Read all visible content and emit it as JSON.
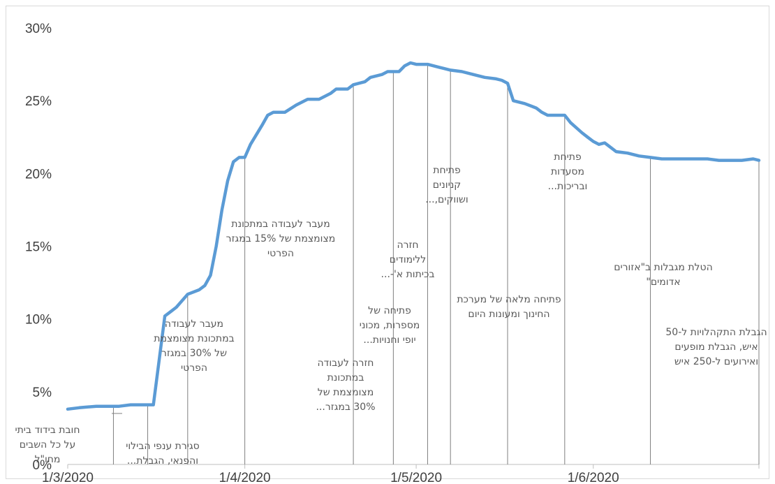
{
  "chart_data": {
    "type": "line",
    "title": "",
    "xlabel": "",
    "ylabel": "",
    "ylim": [
      0,
      30
    ],
    "y_ticks": [
      "0%",
      "5%",
      "10%",
      "15%",
      "20%",
      "25%",
      "30%"
    ],
    "x_ticks": [
      {
        "label": "1/3/2020",
        "date": "2020-03-01"
      },
      {
        "label": "1/4/2020",
        "date": "2020-04-01"
      },
      {
        "label": "1/5/2020",
        "date": "2020-05-01"
      },
      {
        "label": "1/6/2020",
        "date": "2020-06-01"
      }
    ],
    "grid": false,
    "legend": "none",
    "line_color": "#5b9bd5",
    "marker_line_color": "#7f7f7f",
    "series": [
      {
        "x": [
          "2020-03-01",
          "2020-03-03",
          "2020-03-06",
          "2020-03-08",
          "2020-03-10",
          "2020-03-12",
          "2020-03-14",
          "2020-03-16",
          "2020-03-18",
          "2020-03-19",
          "2020-03-20",
          "2020-03-22",
          "2020-03-24",
          "2020-03-25",
          "2020-03-26",
          "2020-03-27",
          "2020-03-28",
          "2020-03-29",
          "2020-03-30",
          "2020-03-31",
          "2020-04-01",
          "2020-04-02",
          "2020-04-04",
          "2020-04-05",
          "2020-04-06",
          "2020-04-08",
          "2020-04-10",
          "2020-04-12",
          "2020-04-13",
          "2020-04-14",
          "2020-04-16",
          "2020-04-17",
          "2020-04-19",
          "2020-04-20",
          "2020-04-22",
          "2020-04-23",
          "2020-04-25",
          "2020-04-26",
          "2020-04-28",
          "2020-04-29",
          "2020-04-30",
          "2020-05-01",
          "2020-05-03",
          "2020-05-05",
          "2020-05-07",
          "2020-05-09",
          "2020-05-11",
          "2020-05-13",
          "2020-05-15",
          "2020-05-16",
          "2020-05-17",
          "2020-05-18",
          "2020-05-20",
          "2020-05-22",
          "2020-05-23",
          "2020-05-24",
          "2020-05-25",
          "2020-05-27",
          "2020-05-28",
          "2020-05-30",
          "2020-05-31",
          "2020-06-01",
          "2020-06-02",
          "2020-06-03",
          "2020-06-04",
          "2020-06-05",
          "2020-06-07",
          "2020-06-09",
          "2020-06-11",
          "2020-06-13",
          "2020-06-15",
          "2020-06-17",
          "2020-06-19",
          "2020-06-21",
          "2020-06-23",
          "2020-06-25",
          "2020-06-27",
          "2020-06-29",
          "2020-06-30"
        ],
        "values": [
          3.8,
          3.9,
          4.0,
          4.0,
          4.0,
          4.1,
          4.1,
          4.1,
          10.2,
          10.5,
          10.8,
          11.7,
          12.0,
          12.3,
          13.0,
          15.0,
          17.5,
          19.5,
          20.8,
          21.1,
          21.1,
          22.0,
          23.3,
          24.0,
          24.2,
          24.2,
          24.7,
          25.1,
          25.1,
          25.1,
          25.5,
          25.8,
          25.8,
          26.1,
          26.3,
          26.6,
          26.8,
          27.0,
          27.0,
          27.4,
          27.6,
          27.5,
          27.5,
          27.3,
          27.1,
          27.0,
          26.8,
          26.6,
          26.5,
          26.4,
          26.2,
          25.0,
          24.8,
          24.5,
          24.2,
          24.0,
          24.0,
          24.0,
          23.5,
          22.8,
          22.5,
          22.2,
          22.0,
          22.1,
          21.8,
          21.5,
          21.4,
          21.2,
          21.1,
          21.0,
          21.0,
          21.0,
          21.0,
          21.0,
          20.9,
          20.9,
          20.9,
          21.0,
          20.9
        ]
      }
    ],
    "events": [
      {
        "date": "2020-03-09",
        "label": "סגירת ענפי הבילוי והפנאי, הגבלת..."
      },
      {
        "date": "2020-03-15",
        "label": "מעבר לעבודה במתכונת מצומצמת של 30% במגזר הפרטי"
      },
      {
        "date": "2020-03-22",
        "label": "מעבר לעבודה במתכונת מצומצמת של 15% במגזר הפרטי"
      },
      {
        "date": "2020-04-01",
        "label": ""
      },
      {
        "date": "2020-04-20",
        "label": "חזרה לעבודה במתכונת מצומצמת של 30% במגזר..."
      },
      {
        "date": "2020-04-27",
        "label": "פתיחה של מספרות, מכוני יופי וחנויות..."
      },
      {
        "date": "2020-05-03",
        "label": "חזרה ללימודים בכיתות א'-..."
      },
      {
        "date": "2020-05-07",
        "label": "פתיחת קניונים ושווקים,..."
      },
      {
        "date": "2020-05-17",
        "label": "פתיחה מלאה של מערכת החינוך ומעונות היום"
      },
      {
        "date": "2020-05-27",
        "label": "פתיחת מסעדות ובריכות..."
      },
      {
        "date": "2020-06-11",
        "label": "הטלת מגבלות ב\"אזורים אדומים\""
      },
      {
        "date": "2020-06-30",
        "label": "הגבלת התקהלויות ל-50 איש, הגבלת מופעים ואירועים ל-250 איש"
      }
    ],
    "first_annotation": "חובת בידוד ביתי על כל השבים מחו\"ל"
  }
}
